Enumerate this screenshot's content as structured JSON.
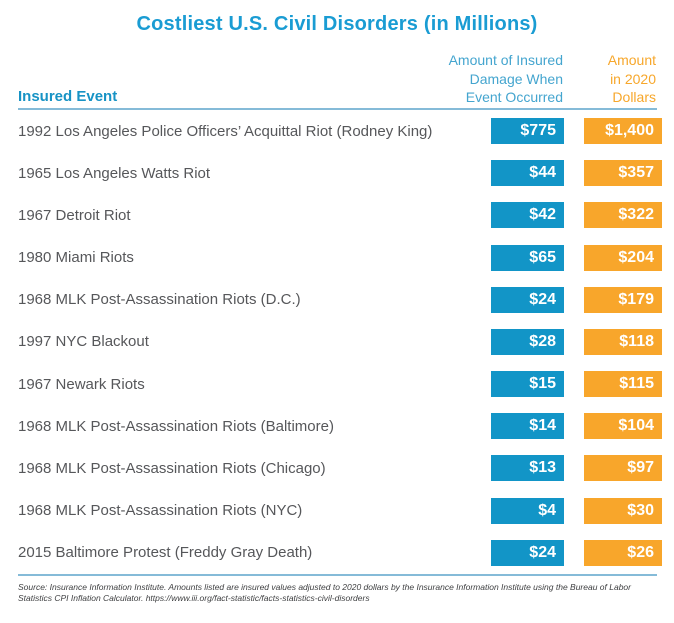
{
  "title": "Costliest U.S. Civil Disorders (in Millions)",
  "colors": {
    "title_blue": "#1a9cd3",
    "badge_blue": "#1295c7",
    "badge_orange": "#f8a62b",
    "rule_blue": "#85bbd8",
    "event_text": "#56575a"
  },
  "header": {
    "event_col": "Insured Event",
    "occurred_lines": [
      "Amount of Insured",
      "Damage When",
      "Event Occurred"
    ],
    "adjusted_lines": [
      "Amount",
      "in 2020",
      "Dollars"
    ]
  },
  "table": {
    "rows": [
      {
        "event": "1992 Los Angeles Police Officers’ Acquittal Riot (Rodney King)",
        "occurred": "$775",
        "adjusted": "$1,400"
      },
      {
        "event": "1965 Los Angeles Watts Riot",
        "occurred": "$44",
        "adjusted": "$357"
      },
      {
        "event": "1967 Detroit Riot",
        "occurred": "$42",
        "adjusted": "$322"
      },
      {
        "event": "1980 Miami Riots",
        "occurred": "$65",
        "adjusted": "$204"
      },
      {
        "event": "1968 MLK Post-Assassination Riots (D.C.)",
        "occurred": "$24",
        "adjusted": "$179"
      },
      {
        "event": "1997 NYC Blackout",
        "occurred": "$28",
        "adjusted": "$118"
      },
      {
        "event": "1967 Newark Riots",
        "occurred": "$15",
        "adjusted": "$115"
      },
      {
        "event": "1968 MLK Post-Assassination Riots (Baltimore)",
        "occurred": "$14",
        "adjusted": "$104"
      },
      {
        "event": "1968 MLK Post-Assassination Riots (Chicago)",
        "occurred": "$13",
        "adjusted": "$97"
      },
      {
        "event": "1968 MLK Post-Assassination Riots (NYC)",
        "occurred": "$4",
        "adjusted": "$30"
      },
      {
        "event": "2015 Baltimore Protest (Freddy Gray Death)",
        "occurred": "$24",
        "adjusted": "$26"
      }
    ]
  },
  "footer": {
    "line1": "Source: Insurance Information Institute. Amounts listed are insured values adjusted to 2020 dollars by the Insurance Information Institute using the Bureau of Labor",
    "line2": "Statistics CPI Inflation Calculator. https://www.iii.org/fact-statistic/facts-statistics-civil-disorders"
  },
  "chart_data": {
    "type": "table",
    "title": "Costliest U.S. Civil Disorders (in Millions)",
    "categories": [
      "1992 Los Angeles Police Officers’ Acquittal Riot (Rodney King)",
      "1965 Los Angeles Watts Riot",
      "1967 Detroit Riot",
      "1980 Miami Riots",
      "1968 MLK Post-Assassination Riots (D.C.)",
      "1997 NYC Blackout",
      "1967 Newark Riots",
      "1968 MLK Post-Assassination Riots (Baltimore)",
      "1968 MLK Post-Assassination Riots (Chicago)",
      "1968 MLK Post-Assassination Riots (NYC)",
      "2015 Baltimore Protest (Freddy Gray Death)"
    ],
    "series": [
      {
        "name": "Amount of Insured Damage When Event Occurred",
        "values": [
          775,
          44,
          42,
          65,
          24,
          28,
          15,
          14,
          13,
          4,
          24
        ]
      },
      {
        "name": "Amount in 2020 Dollars",
        "values": [
          1400,
          357,
          322,
          204,
          179,
          118,
          115,
          104,
          97,
          30,
          26
        ]
      }
    ],
    "units": "millions USD",
    "legend_position": "column headers"
  }
}
